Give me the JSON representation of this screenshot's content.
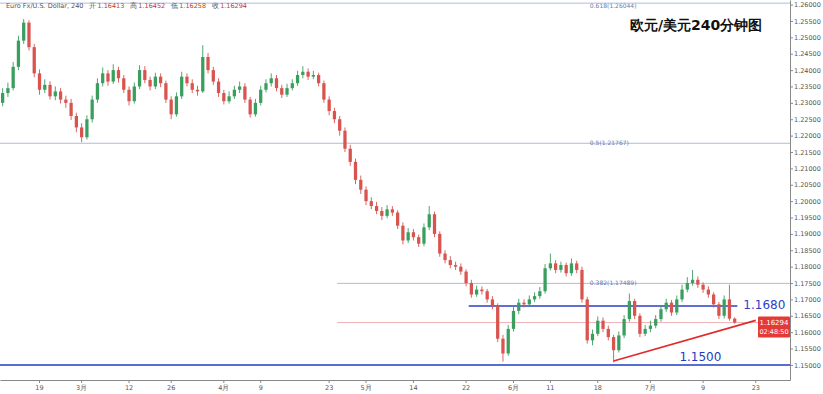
{
  "chart_data": {
    "type": "candlestick",
    "title": "欧元/美元240分钟图",
    "subtitle": "Euro Fx/U.S. Dollar, 240",
    "ohlc_header": [
      {
        "label": "开",
        "value": 1.16413
      },
      {
        "label": "高",
        "value": 1.16452
      },
      {
        "label": "低",
        "value": 1.16258
      },
      {
        "label": "收",
        "value": 1.16294
      }
    ],
    "categories": [
      null,
      null,
      null,
      null,
      null,
      null,
      null,
      "19",
      null,
      null,
      null,
      null,
      null,
      null,
      null,
      "3月",
      null,
      null,
      null,
      null,
      null,
      null,
      null,
      null,
      "12",
      null,
      null,
      null,
      null,
      null,
      null,
      null,
      "26",
      null,
      null,
      null,
      null,
      null,
      null,
      null,
      null,
      null,
      "4月",
      null,
      null,
      null,
      null,
      null,
      null,
      "9",
      null,
      null,
      null,
      null,
      null,
      null,
      null,
      null,
      null,
      null,
      null,
      null,
      "23",
      null,
      null,
      null,
      null,
      null,
      null,
      "5月",
      null,
      null,
      null,
      null,
      null,
      null,
      null,
      null,
      "14",
      null,
      null,
      null,
      null,
      null,
      null,
      null,
      null,
      null,
      "22",
      null,
      null,
      null,
      null,
      null,
      null,
      null,
      null,
      "6月",
      null,
      null,
      null,
      null,
      null,
      null,
      "11",
      null,
      null,
      null,
      null,
      null,
      null,
      null,
      null,
      "18",
      null,
      null,
      null,
      null,
      null,
      null,
      null,
      null,
      null,
      "7月",
      null,
      null,
      null,
      null,
      null,
      null,
      null,
      null,
      null,
      "9",
      null,
      null,
      null,
      null,
      null,
      null,
      null,
      null,
      null,
      "23",
      null,
      null,
      null,
      null,
      null,
      null
    ],
    "open": [
      1.23,
      1.233,
      1.2345,
      1.241,
      1.249,
      1.2545,
      1.247,
      1.239,
      1.234,
      1.2355,
      1.232,
      1.2335,
      1.231,
      1.23,
      1.226,
      1.2225,
      1.2195,
      1.225,
      1.231,
      1.236,
      1.239,
      1.2365,
      1.24,
      1.2375,
      1.234,
      1.2305,
      1.235,
      1.24,
      1.237,
      1.235,
      1.238,
      1.236,
      1.231,
      1.2265,
      1.232,
      1.238,
      1.236,
      1.234,
      1.2335,
      1.244,
      1.24,
      1.2365,
      1.233,
      1.2305,
      1.232,
      1.234,
      1.235,
      1.231,
      1.2265,
      1.23,
      1.234,
      1.236,
      1.2375,
      1.2345,
      1.2325,
      1.2345,
      1.236,
      1.2385,
      1.2395,
      1.238,
      1.2385,
      1.236,
      1.231,
      1.2275,
      1.225,
      1.2215,
      1.216,
      1.212,
      1.2065,
      1.2035,
      1.2,
      1.1985,
      1.197,
      1.1955,
      1.1975,
      1.1965,
      1.1925,
      1.188,
      1.1905,
      1.189,
      1.187,
      1.192,
      1.196,
      1.19,
      1.184,
      1.182,
      1.1805,
      1.18,
      1.1785,
      1.175,
      1.1715,
      1.173,
      1.1725,
      1.17,
      1.168,
      1.158,
      1.1535,
      1.161,
      1.1665,
      1.169,
      1.1685,
      1.17,
      1.171,
      1.1725,
      1.1795,
      1.181,
      1.179,
      1.1805,
      1.178,
      1.181,
      1.179,
      1.17,
      1.1575,
      1.1595,
      1.1635,
      1.161,
      1.1585,
      1.1545,
      1.159,
      1.164,
      1.1695,
      1.165,
      1.1595,
      1.161,
      1.162,
      1.164,
      1.167,
      1.169,
      1.166,
      1.17,
      1.173,
      1.175,
      1.176,
      1.1745,
      1.173,
      1.1715,
      1.1685,
      1.165,
      1.17,
      1.16413,
      null,
      null,
      null,
      null,
      null,
      null,
      null,
      null,
      null,
      null
    ],
    "high": [
      1.2345,
      1.2362,
      1.2425,
      1.2505,
      1.2556,
      1.2552,
      1.248,
      1.2402,
      1.2372,
      1.2366,
      1.235,
      1.2345,
      1.2322,
      1.2312,
      1.227,
      1.2238,
      1.2262,
      1.2322,
      1.2375,
      1.2408,
      1.24,
      1.2418,
      1.241,
      1.2385,
      1.235,
      1.2362,
      1.2415,
      1.2412,
      1.238,
      1.2392,
      1.239,
      1.2368,
      1.232,
      1.2332,
      1.2395,
      1.239,
      1.2372,
      1.2352,
      1.2476,
      1.2452,
      1.241,
      1.2375,
      1.234,
      1.2335,
      1.2352,
      1.2365,
      1.236,
      1.2318,
      1.2312,
      1.2352,
      1.2372,
      1.239,
      1.2385,
      1.2355,
      1.2358,
      1.2372,
      1.2398,
      1.2412,
      1.2405,
      1.2398,
      1.2392,
      1.2368,
      1.232,
      1.2285,
      1.226,
      1.2225,
      1.2172,
      1.213,
      1.2078,
      1.2045,
      1.2012,
      1.1998,
      1.1982,
      1.1988,
      1.1985,
      1.1972,
      1.1935,
      1.1918,
      1.1915,
      1.1898,
      1.1932,
      1.1985,
      1.1968,
      1.1908,
      1.185,
      1.1832,
      1.1815,
      1.181,
      1.1792,
      1.176,
      1.1742,
      1.174,
      1.1732,
      1.171,
      1.1688,
      1.1592,
      1.1622,
      1.1678,
      1.1702,
      1.17,
      1.1712,
      1.1722,
      1.1738,
      1.1808,
      1.184,
      1.182,
      1.1815,
      1.1812,
      1.1825,
      1.1818,
      1.18,
      1.1708,
      1.1608,
      1.1648,
      1.1645,
      1.162,
      1.1592,
      1.1602,
      1.1652,
      1.1718,
      1.1702,
      1.1658,
      1.1622,
      1.1635,
      1.1652,
      1.1682,
      1.1702,
      1.1698,
      1.1712,
      1.1745,
      1.1768,
      1.179,
      1.177,
      1.1752,
      1.174,
      1.1722,
      1.1692,
      1.1712,
      1.1745,
      1.16452,
      null,
      null,
      null,
      null,
      null,
      null,
      null,
      null,
      null,
      null
    ],
    "low": [
      1.229,
      1.2318,
      1.2338,
      1.24,
      1.248,
      1.246,
      1.2378,
      1.2325,
      1.233,
      1.231,
      1.2308,
      1.2298,
      1.2285,
      1.2248,
      1.221,
      1.218,
      1.2188,
      1.224,
      1.23,
      1.235,
      1.2352,
      1.2358,
      1.2362,
      1.233,
      1.2292,
      1.2298,
      1.2342,
      1.236,
      1.2338,
      1.2342,
      1.2348,
      1.23,
      1.225,
      1.2258,
      1.2312,
      1.235,
      1.233,
      1.2322,
      1.233,
      1.239,
      1.2355,
      1.2318,
      1.2295,
      1.2298,
      1.2312,
      1.233,
      1.23,
      1.2255,
      1.2258,
      1.2292,
      1.2332,
      1.235,
      1.2335,
      1.2315,
      1.2318,
      1.2338,
      1.2352,
      1.2375,
      1.237,
      1.2372,
      1.235,
      1.23,
      1.2262,
      1.2238,
      1.22,
      1.215,
      1.2108,
      1.2052,
      1.2022,
      1.1988,
      1.1975,
      1.196,
      1.1942,
      1.1948,
      1.1955,
      1.1915,
      1.1868,
      1.1872,
      1.188,
      1.186,
      1.1862,
      1.1912,
      1.189,
      1.183,
      1.181,
      1.1795,
      1.179,
      1.1775,
      1.174,
      1.1705,
      1.1708,
      1.1715,
      1.169,
      1.167,
      1.157,
      1.151,
      1.1528,
      1.1602,
      1.1655,
      1.1675,
      1.1678,
      1.1692,
      1.1702,
      1.1718,
      1.1788,
      1.178,
      1.1782,
      1.177,
      1.1772,
      1.178,
      1.169,
      1.1565,
      1.156,
      1.1588,
      1.16,
      1.1575,
      1.1508,
      1.1538,
      1.1582,
      1.1632,
      1.164,
      1.1585,
      1.1588,
      1.16,
      1.1612,
      1.1632,
      1.1662,
      1.165,
      1.1652,
      1.1692,
      1.1722,
      1.1742,
      1.1735,
      1.172,
      1.1705,
      1.1675,
      1.164,
      1.1642,
      1.1635,
      1.16258,
      null,
      null,
      null,
      null,
      null,
      null,
      null,
      null,
      null,
      null
    ],
    "close": [
      1.233,
      1.2345,
      1.241,
      1.249,
      1.2545,
      1.247,
      1.239,
      1.234,
      1.2355,
      1.232,
      1.2335,
      1.231,
      1.23,
      1.226,
      1.2225,
      1.2195,
      1.225,
      1.231,
      1.236,
      1.239,
      1.2365,
      1.24,
      1.2375,
      1.234,
      1.2305,
      1.235,
      1.24,
      1.237,
      1.235,
      1.238,
      1.236,
      1.231,
      1.2265,
      1.232,
      1.238,
      1.236,
      1.234,
      1.2335,
      1.244,
      1.24,
      1.2365,
      1.233,
      1.2305,
      1.232,
      1.234,
      1.235,
      1.231,
      1.2265,
      1.23,
      1.234,
      1.236,
      1.2375,
      1.2345,
      1.2325,
      1.2345,
      1.236,
      1.2385,
      1.2395,
      1.238,
      1.2385,
      1.236,
      1.231,
      1.2275,
      1.225,
      1.2215,
      1.216,
      1.212,
      1.2065,
      1.2035,
      1.2,
      1.1985,
      1.197,
      1.1955,
      1.1975,
      1.1965,
      1.1925,
      1.188,
      1.1905,
      1.189,
      1.187,
      1.192,
      1.196,
      1.19,
      1.184,
      1.182,
      1.1805,
      1.18,
      1.1785,
      1.175,
      1.1715,
      1.173,
      1.1725,
      1.17,
      1.168,
      1.158,
      1.1535,
      1.161,
      1.1665,
      1.169,
      1.1685,
      1.17,
      1.171,
      1.1725,
      1.1795,
      1.181,
      1.179,
      1.1805,
      1.178,
      1.181,
      1.179,
      1.17,
      1.1575,
      1.1595,
      1.1635,
      1.161,
      1.1585,
      1.1545,
      1.159,
      1.164,
      1.1695,
      1.165,
      1.1595,
      1.161,
      1.162,
      1.164,
      1.167,
      1.169,
      1.166,
      1.17,
      1.173,
      1.175,
      1.176,
      1.1745,
      1.173,
      1.1715,
      1.1685,
      1.165,
      1.17,
      1.16413,
      1.16294,
      null,
      null,
      null,
      null,
      null,
      null,
      null,
      null,
      null,
      null
    ],
    "colors": {
      "up": "#3a9e5f",
      "down": "#d9534f"
    },
    "ylim": [
      1.1454,
      1.2614
    ],
    "yticks": [
      {
        "value": 1.15,
        "label": "1.15000"
      },
      {
        "value": 1.155,
        "label": "1.15500"
      },
      {
        "value": 1.16,
        "label": "1.16000"
      },
      {
        "value": 1.165,
        "label": "1.16500"
      },
      {
        "value": 1.17,
        "label": "1.17000"
      },
      {
        "value": 1.175,
        "label": "1.17500"
      },
      {
        "value": 1.18,
        "label": "1.18000"
      },
      {
        "value": 1.185,
        "label": "1.18500"
      },
      {
        "value": 1.19,
        "label": "1.19000"
      },
      {
        "value": 1.195,
        "label": "1.19500"
      },
      {
        "value": 1.2,
        "label": "1.20000"
      },
      {
        "value": 1.205,
        "label": "1.20500"
      },
      {
        "value": 1.21,
        "label": "1.21000"
      },
      {
        "value": 1.215,
        "label": "1.21500"
      },
      {
        "value": 1.22,
        "label": "1.22000"
      },
      {
        "value": 1.225,
        "label": "1.22500"
      },
      {
        "value": 1.23,
        "label": "1.23000"
      },
      {
        "value": 1.235,
        "label": "1.23500"
      },
      {
        "value": 1.24,
        "label": "1.24000"
      },
      {
        "value": 1.245,
        "label": "1.24500"
      },
      {
        "value": 1.25,
        "label": "1.25000"
      },
      {
        "value": 1.255,
        "label": "1.25500"
      },
      {
        "value": 1.26,
        "label": "1.26000"
      }
    ],
    "grid": false,
    "fibonacci": [
      {
        "label": "0.618(1.26044)",
        "value": 1.26044,
        "from": 0,
        "to": 150,
        "color": "#9aaad6"
      },
      {
        "label": "0.5(1.21767)",
        "value": 1.21767,
        "from": 0,
        "to": 150,
        "color": "#9aaad6"
      },
      {
        "label": "0.382(1.17489)",
        "value": 1.17489,
        "from": 64,
        "to": 150,
        "color": "#9aaad6"
      }
    ],
    "levels": [
      {
        "label": "1.1680",
        "value": 1.168,
        "from": 89,
        "to": 140,
        "color": "#2b3fc4"
      },
      {
        "label": "1.1500",
        "value": 1.15,
        "from": 0,
        "to": 150,
        "color": "#1f3cbf"
      }
    ],
    "trendline": {
      "x": [
        116,
        143
      ],
      "y": [
        1.1512,
        1.1636
      ],
      "color": "#e02b2b"
    },
    "last_price": 1.16294,
    "countdown": "02:48:50"
  }
}
